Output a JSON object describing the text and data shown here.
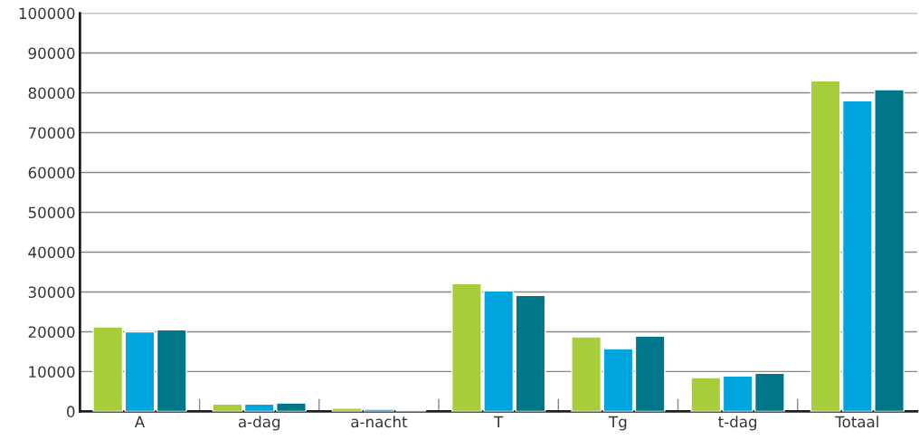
{
  "chart_data": {
    "type": "bar",
    "categories": [
      "A",
      "a-dag",
      "a-nacht",
      "T",
      "Tg",
      "t-dag",
      "Totaal"
    ],
    "series": [
      {
        "color": "#a7cd3a",
        "values": [
          21200,
          1850,
          830,
          32100,
          18700,
          8500,
          83000
        ]
      },
      {
        "color": "#00a5e0",
        "values": [
          20000,
          1850,
          560,
          30250,
          15750,
          8900,
          78000
        ]
      },
      {
        "color": "#007789",
        "values": [
          20500,
          2100,
          300,
          29100,
          18900,
          9600,
          80800
        ]
      }
    ],
    "ylim": [
      0,
      100000
    ],
    "yticks": [
      0,
      10000,
      20000,
      30000,
      40000,
      50000,
      60000,
      70000,
      80000,
      90000,
      100000
    ],
    "grid": "y",
    "legend": false
  }
}
